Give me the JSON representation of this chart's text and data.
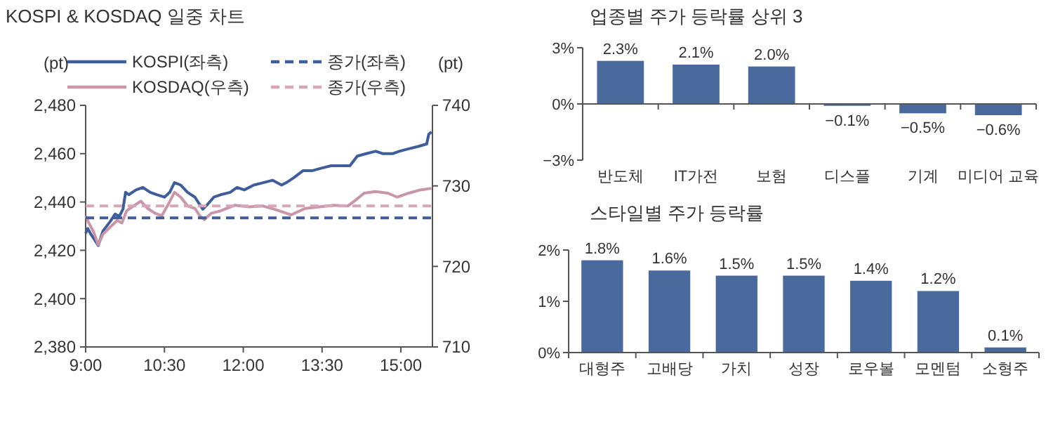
{
  "chart_data": [
    {
      "type": "line",
      "title": "KOSPI & KOSDAQ 일중 차트",
      "ylabel": "(pt)",
      "y2label": "(pt)",
      "legend": "top",
      "xlim": [
        9,
        15.6
      ],
      "xticks": [
        {
          "value": 9,
          "label": "9:00"
        },
        {
          "value": 10.5,
          "label": "10:30"
        },
        {
          "value": 12,
          "label": "12:00"
        },
        {
          "value": 13.5,
          "label": "13:30"
        },
        {
          "value": 15,
          "label": "15:00"
        }
      ],
      "ylim": [
        2380,
        2480
      ],
      "yticks": [
        {
          "value": 2380,
          "label": "2,380"
        },
        {
          "value": 2400,
          "label": "2,400"
        },
        {
          "value": 2420,
          "label": "2,420"
        },
        {
          "value": 2440,
          "label": "2,440"
        },
        {
          "value": 2460,
          "label": "2,460"
        },
        {
          "value": 2480,
          "label": "2,480"
        }
      ],
      "y2lim": [
        710,
        740
      ],
      "y2ticks": [
        710,
        720,
        730,
        740
      ],
      "series": [
        {
          "name": "KOSPI(좌측)",
          "color": "#3d5d9c",
          "x": [
            9,
            9.04,
            9.09,
            9.15,
            9.24,
            9.33,
            9.47,
            9.56,
            9.64,
            9.71,
            9.76,
            9.82,
            9.96,
            10.09,
            10.23,
            10.36,
            10.5,
            10.6,
            10.69,
            10.81,
            10.94,
            11.08,
            11.17,
            11.23,
            11.32,
            11.44,
            11.57,
            11.75,
            11.88,
            12.02,
            12.2,
            12.38,
            12.56,
            12.73,
            12.82,
            12.96,
            13.14,
            13.32,
            13.49,
            13.67,
            13.85,
            14.03,
            14.17,
            14.34,
            14.52,
            14.66,
            14.84,
            14.97,
            15.15,
            15.33,
            15.49,
            15.53,
            15.58
          ],
          "values": [
            2427,
            2429,
            2427,
            2425,
            2422,
            2428,
            2432,
            2435,
            2434,
            2437,
            2444,
            2443,
            2445,
            2446,
            2444,
            2443,
            2442,
            2444,
            2448,
            2447,
            2444,
            2442,
            2439,
            2437,
            2439,
            2442,
            2443,
            2444,
            2446,
            2445,
            2447,
            2448,
            2449,
            2447,
            2448,
            2450,
            2453,
            2453,
            2454,
            2455,
            2455,
            2455,
            2459,
            2460,
            2461,
            2460,
            2460,
            2461,
            2462,
            2463,
            2464,
            2468,
            2469
          ]
        },
        {
          "name": "KOSDAQ(우측)",
          "color": "#c995a8",
          "axis": "y2",
          "x": [
            9,
            9.06,
            9.15,
            9.24,
            9.33,
            9.47,
            9.6,
            9.69,
            9.78,
            9.91,
            10.05,
            10.18,
            10.32,
            10.45,
            10.58,
            10.69,
            10.81,
            10.94,
            11.08,
            11.17,
            11.26,
            11.39,
            11.57,
            11.84,
            12.11,
            12.38,
            12.64,
            12.91,
            13.18,
            13.45,
            13.72,
            13.99,
            14.17,
            14.3,
            14.52,
            14.75,
            14.93,
            15.15,
            15.37,
            15.58
          ],
          "values": [
            726.3,
            725.4,
            724.3,
            722.7,
            724,
            724.9,
            725.7,
            725.4,
            726.9,
            727.5,
            728.1,
            727.2,
            726.6,
            726.3,
            727.8,
            729.2,
            728.6,
            727.5,
            727.2,
            726.3,
            725.8,
            726.6,
            726.9,
            727.6,
            727.4,
            727.5,
            727,
            726.4,
            727.2,
            727.4,
            727.6,
            727.5,
            728.4,
            729.1,
            729.3,
            729.1,
            728.6,
            729.1,
            729.5,
            729.7
          ]
        },
        {
          "name": "종가(좌측)",
          "color": "#3d5d9c",
          "line_style": "dashed",
          "x": [
            9,
            15.6
          ],
          "values": [
            2433.4,
            2433.4
          ]
        },
        {
          "name": "종가(우측)",
          "color": "#d9a5b8",
          "line_style": "dashed",
          "axis": "y2",
          "x": [
            9,
            15.6
          ],
          "values": [
            727.5,
            727.5
          ]
        }
      ]
    },
    {
      "type": "bar",
      "title": "업종별 주가 등락률 상위 3",
      "categories": [
        "반도체",
        "IT가전",
        "보험",
        "디스플",
        "기계",
        "미디어 교육"
      ],
      "values": [
        2.3,
        2.1,
        2.0,
        -0.1,
        -0.5,
        -0.6
      ],
      "value_labels": [
        "2.3%",
        "2.1%",
        "2.0%",
        "−0.1%",
        "−0.5%",
        "−0.6%"
      ],
      "color": "#4a6a9e",
      "ylim": [
        -3,
        3
      ],
      "yticks": [
        {
          "value": -3,
          "label": "−3%"
        },
        {
          "value": 0,
          "label": "0%"
        },
        {
          "value": 3,
          "label": "3%"
        }
      ]
    },
    {
      "type": "bar",
      "title": "스타일별 주가 등락률",
      "categories": [
        "대형주",
        "고배당",
        "가치",
        "성장",
        "로우볼",
        "모멘텀",
        "소형주"
      ],
      "values": [
        1.8,
        1.6,
        1.5,
        1.5,
        1.4,
        1.2,
        0.1
      ],
      "value_labels": [
        "1.8%",
        "1.6%",
        "1.5%",
        "1.5%",
        "1.4%",
        "1.2%",
        "0.1%"
      ],
      "color": "#4a6a9e",
      "ylim": [
        0,
        2
      ],
      "yticks": [
        {
          "value": 0,
          "label": "0%"
        },
        {
          "value": 1,
          "label": "1%"
        },
        {
          "value": 2,
          "label": "2%"
        }
      ]
    }
  ]
}
